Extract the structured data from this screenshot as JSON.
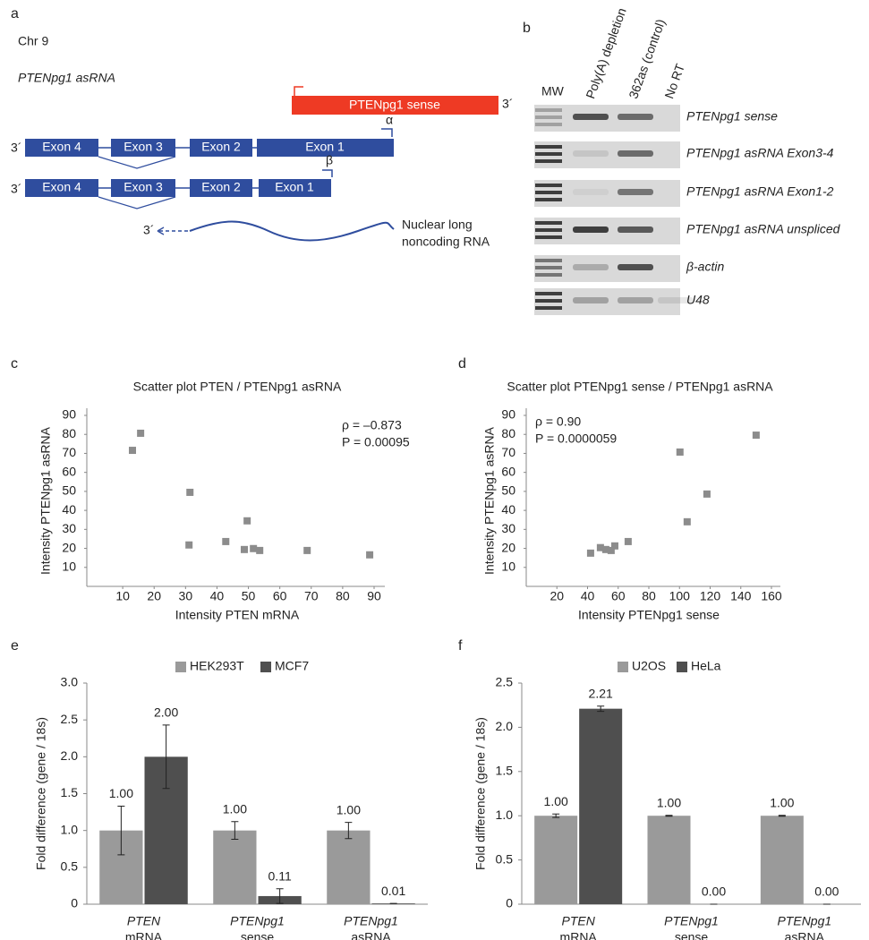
{
  "panels": {
    "a": {
      "letter": "a",
      "chromosome": "Chr 9",
      "title": "PTENpg1 asRNA",
      "sense_label": "PTENpg1 sense",
      "three_prime": "3´",
      "exons": [
        "Exon 4",
        "Exon 3",
        "Exon 2",
        "Exon 1"
      ],
      "alpha": "α",
      "beta": "β",
      "nuclear": [
        "Nuclear long",
        "noncoding RNA"
      ]
    },
    "b": {
      "letter": "b",
      "lanes": [
        "MW",
        "Poly(A) depletion",
        "362as (control)",
        "No RT"
      ],
      "rows": [
        "PTENpg1 sense",
        "PTENpg1 asRNA Exon3-4",
        "PTENpg1 asRNA Exon1-2",
        "PTENpg1 asRNA unspliced",
        "β-actin",
        "U48"
      ]
    }
  },
  "chart_data": [
    {
      "type": "scatter",
      "label": "c",
      "title": "Scatter plot PTEN / PTENpg1 asRNA",
      "x_label": "Intensity PTEN mRNA",
      "y_label": "Intensity PTENpg1 asRNA",
      "annotations": [
        "ρ = –0.873",
        "P = 0.00095"
      ],
      "color": "#8c8c8c",
      "x": [
        13.1,
        15.7,
        31.4,
        31.1,
        42.8,
        49.6,
        48.7,
        51.6,
        53.6,
        68.7,
        88.6
      ],
      "values": [
        71.6,
        80.6,
        49.5,
        21.8,
        23.6,
        34.5,
        19.4,
        19.9,
        18.9,
        18.9,
        16.6
      ],
      "xlim": [
        0,
        90
      ],
      "ylim": [
        0,
        90
      ],
      "xticks": [
        10,
        20,
        30,
        40,
        50,
        60,
        70,
        80,
        90
      ],
      "yticks": [
        10,
        20,
        30,
        40,
        50,
        60,
        70,
        80,
        90
      ]
    },
    {
      "type": "scatter",
      "label": "d",
      "title": "Scatter plot PTENpg1 sense / PTENpg1 asRNA",
      "x_label": "Intensity PTENpg1 sense",
      "y_label": "Intensity PTENpg1 asRNA",
      "annotations": [
        "ρ = 0.90",
        "P = 0.0000059"
      ],
      "color": "#8c8c8c",
      "x": [
        42,
        48.4,
        51.9,
        55.4,
        57.8,
        66.5,
        105,
        100.3,
        117.9,
        150
      ],
      "values": [
        17.5,
        20.4,
        19.4,
        18.9,
        21.3,
        23.6,
        34,
        70.7,
        48.6,
        79.6
      ],
      "xlim": [
        0,
        160
      ],
      "ylim": [
        0,
        90
      ],
      "xticks": [
        20,
        40,
        60,
        80,
        100,
        120,
        140,
        160
      ],
      "yticks": [
        10,
        20,
        30,
        40,
        50,
        60,
        70,
        80,
        90
      ]
    },
    {
      "type": "bar",
      "label": "e",
      "y_label": "Fold difference (gene / 18s)",
      "categories": [
        [
          "PTEN",
          "mRNA"
        ],
        [
          "PTENpg1",
          "sense"
        ],
        [
          "PTENpg1",
          "asRNA"
        ]
      ],
      "series": [
        {
          "name": "HEK293T",
          "color": "#9a9a9a",
          "values": [
            1,
            1,
            1
          ],
          "errors": [
            0.33,
            0.12,
            0.11
          ],
          "value_labels": [
            "1.00",
            "1.00",
            "1.00"
          ]
        },
        {
          "name": "MCF7",
          "color": "#4f4f4f",
          "values": [
            2,
            0.11,
            0.01
          ],
          "errors": [
            0.43,
            0.1,
            0
          ],
          "value_labels": [
            "2.00",
            "0.11",
            "0.01"
          ]
        }
      ],
      "ylim": [
        0,
        3
      ],
      "yticks": [
        0,
        0.5,
        {
          "value": 1,
          "label": "1.0"
        },
        1.5,
        {
          "value": 2,
          "label": "2.0"
        },
        2.5,
        {
          "value": 3,
          "label": "3.0"
        }
      ]
    },
    {
      "type": "bar",
      "label": "f",
      "y_label": "Fold difference (gene / 18s)",
      "categories": [
        [
          "PTEN",
          "mRNA"
        ],
        [
          "PTENpg1",
          "sense"
        ],
        [
          "PTENpg1",
          "asRNA"
        ]
      ],
      "series": [
        {
          "name": "U2OS",
          "color": "#9a9a9a",
          "values": [
            1,
            1,
            1
          ],
          "errors": [
            0.02,
            0.005,
            0.005
          ],
          "value_labels": [
            "1.00",
            "1.00",
            "1.00"
          ]
        },
        {
          "name": "HeLa",
          "color": "#4f4f4f",
          "values": [
            2.21,
            0,
            0
          ],
          "errors": [
            0.03,
            0,
            0
          ],
          "value_labels": [
            "2.21",
            "0.00",
            "0.00"
          ]
        }
      ],
      "ylim": [
        0,
        2.5
      ],
      "yticks": [
        0,
        0.5,
        {
          "value": 1,
          "label": "1.0"
        },
        1.5,
        {
          "value": 2,
          "label": "2.0"
        },
        2.5
      ]
    }
  ]
}
